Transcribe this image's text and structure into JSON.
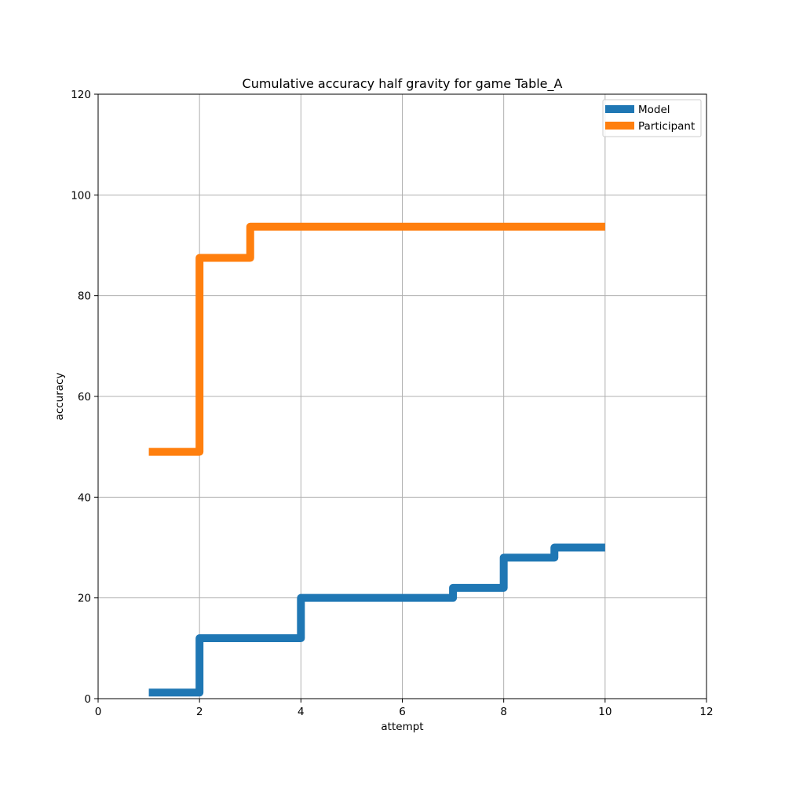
{
  "chart_data": {
    "type": "line",
    "title": "Cumulative accuracy half gravity for game Table_A",
    "xlabel": "attempt",
    "ylabel": "accuracy",
    "xlim": [
      0,
      12
    ],
    "ylim": [
      0,
      120
    ],
    "xticks": [
      "0",
      "2",
      "4",
      "6",
      "8",
      "10",
      "12"
    ],
    "yticks": [
      "0",
      "20",
      "40",
      "60",
      "80",
      "100",
      "120"
    ],
    "grid": true,
    "legend_position": "top-right",
    "step": "post",
    "series": [
      {
        "name": "Model",
        "color": "#1f77b4",
        "x": [
          1,
          2,
          3,
          4,
          5,
          6,
          7,
          8,
          9,
          10
        ],
        "y": [
          1.2,
          12,
          12,
          20,
          20,
          20,
          22,
          28,
          30,
          30
        ]
      },
      {
        "name": "Participant",
        "color": "#ff7f0e",
        "x": [
          1,
          2,
          3,
          4,
          5,
          6,
          7,
          8,
          9,
          10
        ],
        "y": [
          49,
          87.5,
          93.7,
          93.7,
          93.7,
          93.7,
          93.7,
          93.7,
          93.7,
          93.7
        ]
      }
    ]
  }
}
